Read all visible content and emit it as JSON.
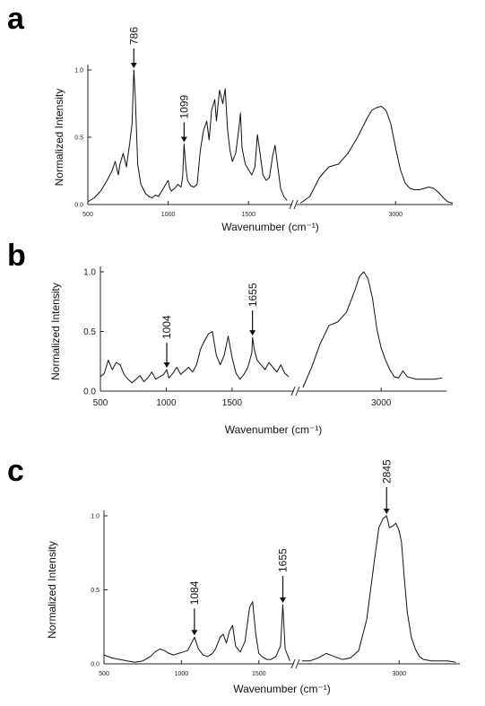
{
  "chart_data": [
    {
      "type": "line",
      "panel": "a",
      "xlabel": "Wavenumber (cm⁻¹)",
      "ylabel": "Normalized Intensity",
      "xticks": [
        "500",
        "1000",
        "1500",
        "3000"
      ],
      "yticks": [
        "0.0",
        "0.5",
        "1.0"
      ],
      "ylim": [
        0,
        1.1
      ],
      "broken_x_axis": true,
      "segments": [
        {
          "x": [
            500,
            540,
            580,
            620,
            650,
            670,
            690,
            700,
            720,
            740,
            760,
            775,
            786,
            795,
            810,
            830,
            860,
            880,
            900,
            920,
            940,
            960,
            980,
            1000,
            1010,
            1020,
            1040,
            1060,
            1080,
            1090,
            1099,
            1110,
            1120,
            1140,
            1160,
            1180,
            1200,
            1220,
            1240,
            1255,
            1270,
            1290,
            1300,
            1320,
            1340,
            1355,
            1370,
            1385,
            1400,
            1420,
            1440,
            1450,
            1460,
            1480,
            1500,
            1520,
            1540,
            1555,
            1570,
            1590,
            1610,
            1630,
            1650,
            1665,
            1680,
            1700,
            1720,
            1740
          ],
          "y": [
            0.02,
            0.05,
            0.1,
            0.18,
            0.25,
            0.32,
            0.22,
            0.3,
            0.38,
            0.28,
            0.45,
            0.6,
            1.0,
            0.8,
            0.3,
            0.15,
            0.08,
            0.06,
            0.05,
            0.07,
            0.06,
            0.1,
            0.14,
            0.18,
            0.12,
            0.1,
            0.12,
            0.15,
            0.13,
            0.2,
            0.45,
            0.28,
            0.18,
            0.14,
            0.13,
            0.15,
            0.4,
            0.55,
            0.62,
            0.48,
            0.7,
            0.78,
            0.62,
            0.85,
            0.75,
            0.86,
            0.55,
            0.4,
            0.32,
            0.38,
            0.56,
            0.68,
            0.42,
            0.3,
            0.26,
            0.22,
            0.28,
            0.52,
            0.4,
            0.22,
            0.18,
            0.2,
            0.36,
            0.44,
            0.3,
            0.12,
            0.06,
            0.03
          ]
        },
        {
          "x": [
            2000,
            2100,
            2200,
            2300,
            2400,
            2500,
            2600,
            2700,
            2750,
            2800,
            2850,
            2900,
            2950,
            3000,
            3050,
            3100,
            3150,
            3200,
            3250,
            3300,
            3350,
            3400,
            3450,
            3500,
            3550,
            3600
          ],
          "y": [
            0.01,
            0.06,
            0.2,
            0.28,
            0.3,
            0.38,
            0.5,
            0.64,
            0.7,
            0.72,
            0.73,
            0.7,
            0.6,
            0.42,
            0.26,
            0.16,
            0.12,
            0.11,
            0.11,
            0.12,
            0.13,
            0.12,
            0.09,
            0.05,
            0.02,
            0.01
          ]
        }
      ],
      "annotations": [
        {
          "x": 786,
          "label": "786"
        },
        {
          "x": 1099,
          "label": "1099"
        }
      ]
    },
    {
      "type": "line",
      "panel": "b",
      "xlabel": "Wavenumber (cm⁻¹)",
      "ylabel": "Normalized Intensity",
      "xticks": [
        "500",
        "1000",
        "1500",
        "3000"
      ],
      "yticks": [
        "0.0",
        "0.5",
        "1.0"
      ],
      "ylim": [
        0,
        1.05
      ],
      "broken_x_axis": true,
      "segments": [
        {
          "x": [
            500,
            530,
            560,
            590,
            620,
            650,
            680,
            710,
            740,
            770,
            800,
            830,
            860,
            890,
            920,
            950,
            980,
            1004,
            1020,
            1050,
            1080,
            1110,
            1140,
            1170,
            1200,
            1230,
            1260,
            1290,
            1320,
            1350,
            1380,
            1410,
            1440,
            1470,
            1500,
            1530,
            1560,
            1590,
            1620,
            1650,
            1655,
            1670,
            1690,
            1720,
            1750,
            1780,
            1810,
            1840,
            1870,
            1900,
            1930
          ],
          "y": [
            0.12,
            0.15,
            0.26,
            0.18,
            0.24,
            0.22,
            0.14,
            0.1,
            0.07,
            0.1,
            0.13,
            0.08,
            0.11,
            0.16,
            0.1,
            0.12,
            0.14,
            0.18,
            0.11,
            0.15,
            0.2,
            0.14,
            0.17,
            0.2,
            0.16,
            0.22,
            0.35,
            0.42,
            0.48,
            0.5,
            0.3,
            0.22,
            0.3,
            0.46,
            0.28,
            0.15,
            0.1,
            0.14,
            0.2,
            0.32,
            0.45,
            0.34,
            0.26,
            0.22,
            0.18,
            0.24,
            0.2,
            0.16,
            0.22,
            0.15,
            0.12
          ]
        },
        {
          "x": [
            2100,
            2200,
            2300,
            2400,
            2500,
            2600,
            2700,
            2750,
            2800,
            2850,
            2900,
            2950,
            3000,
            3050,
            3100,
            3150,
            3200,
            3250,
            3300,
            3400,
            3500,
            3600,
            3700
          ],
          "y": [
            0.03,
            0.2,
            0.4,
            0.55,
            0.58,
            0.66,
            0.85,
            0.96,
            1.0,
            0.94,
            0.78,
            0.52,
            0.36,
            0.26,
            0.18,
            0.12,
            0.11,
            0.17,
            0.12,
            0.1,
            0.1,
            0.1,
            0.11
          ]
        }
      ],
      "annotations": [
        {
          "x": 1004,
          "label": "1004"
        },
        {
          "x": 1655,
          "label": "1655"
        }
      ]
    },
    {
      "type": "line",
      "panel": "c",
      "xlabel": "Wavenumber (cm⁻¹)",
      "ylabel": "Normalized Intensity",
      "xticks": [
        "500",
        "1000",
        "1500",
        "3000"
      ],
      "yticks": [
        "0.0",
        "0.5",
        "1.0"
      ],
      "ylim": [
        0,
        1.1
      ],
      "broken_x_axis": true,
      "segments": [
        {
          "x": [
            500,
            550,
            600,
            650,
            700,
            750,
            800,
            830,
            860,
            890,
            920,
            950,
            980,
            1010,
            1040,
            1060,
            1084,
            1110,
            1140,
            1170,
            1200,
            1220,
            1250,
            1270,
            1290,
            1310,
            1330,
            1350,
            1380,
            1410,
            1440,
            1460,
            1480,
            1500,
            1520,
            1550,
            1580,
            1610,
            1640,
            1655,
            1670,
            1700
          ],
          "y": [
            0.06,
            0.04,
            0.03,
            0.02,
            0.01,
            0.02,
            0.05,
            0.08,
            0.1,
            0.09,
            0.07,
            0.06,
            0.07,
            0.08,
            0.09,
            0.13,
            0.18,
            0.1,
            0.06,
            0.05,
            0.07,
            0.1,
            0.18,
            0.2,
            0.14,
            0.22,
            0.26,
            0.12,
            0.08,
            0.15,
            0.38,
            0.42,
            0.2,
            0.07,
            0.05,
            0.03,
            0.03,
            0.05,
            0.12,
            0.4,
            0.1,
            0.02
          ]
        },
        {
          "x": [
            1800,
            1900,
            2000,
            2100,
            2200,
            2300,
            2400,
            2500,
            2600,
            2700,
            2750,
            2800,
            2845,
            2880,
            2920,
            2960,
            3000,
            3030,
            3060,
            3100,
            3150,
            3200,
            3250,
            3300,
            3400,
            3500,
            3600,
            3700
          ],
          "y": [
            0.02,
            0.02,
            0.04,
            0.07,
            0.05,
            0.03,
            0.04,
            0.09,
            0.3,
            0.72,
            0.92,
            0.98,
            1.0,
            0.92,
            0.93,
            0.95,
            0.9,
            0.82,
            0.6,
            0.35,
            0.18,
            0.1,
            0.05,
            0.03,
            0.02,
            0.02,
            0.02,
            0.01
          ]
        }
      ],
      "annotations": [
        {
          "x": 1084,
          "label": "1084"
        },
        {
          "x": 1655,
          "label": "1655"
        },
        {
          "x": 2845,
          "label": "2845"
        }
      ]
    }
  ]
}
